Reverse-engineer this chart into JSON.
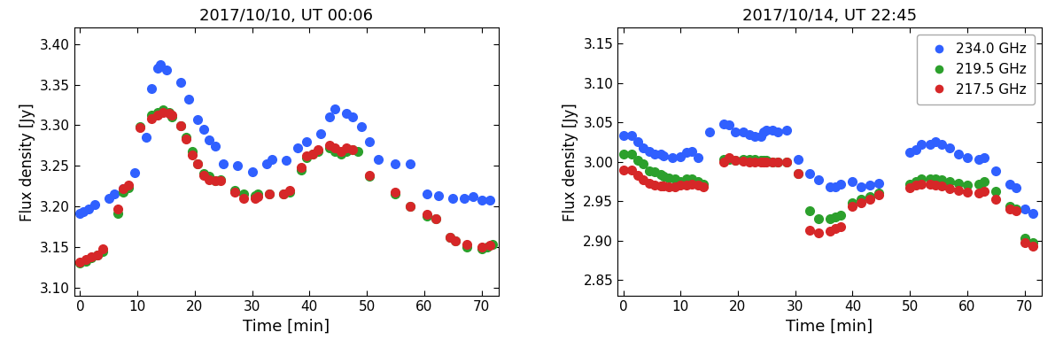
{
  "panel1": {
    "title": "2017/10/10, UT 00:06",
    "ylabel": "Flux density [Jy]",
    "xlabel": "Time [min]",
    "xlim": [
      -1,
      73
    ],
    "ylim": [
      3.09,
      3.42
    ],
    "yticks": [
      3.1,
      3.15,
      3.2,
      3.25,
      3.3,
      3.35,
      3.4
    ],
    "xticks": [
      0,
      10,
      20,
      30,
      40,
      50,
      60,
      70
    ],
    "blue": {
      "x": [
        0.0,
        0.5,
        1.5,
        2.5,
        5.0,
        6.0,
        7.5,
        9.5,
        11.5,
        12.5,
        13.5,
        14.0,
        15.0,
        17.5,
        19.0,
        20.5,
        21.5,
        22.5,
        23.5,
        25.0,
        27.5,
        30.0,
        32.5,
        33.5,
        36.0,
        38.0,
        39.5,
        42.0,
        43.5,
        44.5,
        46.5,
        47.5,
        49.0,
        50.5,
        52.0,
        55.0,
        57.5,
        60.5,
        62.5,
        65.0,
        67.0,
        68.5,
        70.0,
        71.5
      ],
      "y": [
        3.192,
        3.194,
        3.197,
        3.202,
        3.21,
        3.215,
        3.222,
        3.242,
        3.285,
        3.345,
        3.37,
        3.375,
        3.368,
        3.353,
        3.332,
        3.307,
        3.295,
        3.282,
        3.274,
        3.253,
        3.25,
        3.243,
        3.252,
        3.258,
        3.257,
        3.272,
        3.28,
        3.29,
        3.31,
        3.32,
        3.315,
        3.31,
        3.298,
        3.28,
        3.258,
        3.252,
        3.252,
        3.215,
        3.213,
        3.21,
        3.21,
        3.212,
        3.208,
        3.208
      ]
    },
    "green": {
      "x": [
        0.0,
        1.0,
        2.0,
        3.0,
        4.0,
        6.5,
        7.5,
        8.5,
        10.5,
        12.5,
        13.5,
        14.5,
        15.5,
        16.0,
        17.5,
        18.5,
        19.5,
        20.5,
        21.5,
        22.5,
        23.5,
        24.5,
        27.0,
        28.5,
        30.5,
        31.0,
        33.0,
        35.5,
        36.5,
        38.5,
        39.5,
        40.5,
        41.5,
        43.5,
        44.5,
        45.5,
        46.5,
        47.5,
        48.5,
        50.5,
        55.0,
        57.5,
        60.5,
        62.0,
        64.5,
        65.5,
        67.5,
        70.0,
        71.0,
        72.0
      ],
      "y": [
        3.13,
        3.133,
        3.137,
        3.14,
        3.145,
        3.192,
        3.218,
        3.223,
        3.298,
        3.312,
        3.316,
        3.319,
        3.316,
        3.31,
        3.299,
        3.285,
        3.268,
        3.253,
        3.24,
        3.237,
        3.232,
        3.233,
        3.22,
        3.215,
        3.213,
        3.215,
        3.215,
        3.215,
        3.218,
        3.245,
        3.26,
        3.265,
        3.268,
        3.272,
        3.268,
        3.265,
        3.268,
        3.27,
        3.268,
        3.237,
        3.215,
        3.2,
        3.188,
        3.185,
        3.162,
        3.158,
        3.15,
        3.148,
        3.15,
        3.153
      ]
    },
    "red": {
      "x": [
        0.0,
        1.0,
        2.0,
        3.0,
        4.0,
        6.5,
        7.5,
        8.5,
        10.5,
        12.5,
        13.5,
        14.5,
        15.5,
        16.0,
        17.5,
        18.5,
        19.5,
        20.5,
        21.5,
        22.5,
        23.5,
        24.5,
        27.0,
        28.5,
        30.5,
        31.0,
        33.0,
        35.5,
        36.5,
        38.5,
        39.5,
        40.5,
        41.5,
        43.5,
        44.5,
        45.5,
        46.5,
        47.5,
        50.5,
        55.0,
        57.5,
        60.5,
        62.0,
        64.5,
        65.5,
        67.5,
        70.0,
        71.5
      ],
      "y": [
        3.132,
        3.135,
        3.138,
        3.14,
        3.148,
        3.197,
        3.222,
        3.226,
        3.297,
        3.308,
        3.312,
        3.316,
        3.315,
        3.312,
        3.299,
        3.283,
        3.263,
        3.252,
        3.238,
        3.233,
        3.232,
        3.232,
        3.218,
        3.21,
        3.21,
        3.212,
        3.215,
        3.215,
        3.22,
        3.248,
        3.262,
        3.265,
        3.27,
        3.275,
        3.272,
        3.268,
        3.272,
        3.27,
        3.238,
        3.218,
        3.2,
        3.19,
        3.185,
        3.162,
        3.158,
        3.153,
        3.15,
        3.152
      ]
    }
  },
  "panel2": {
    "title": "2017/10/14, UT 22:45",
    "ylabel": "Flux density [Jy]",
    "xlabel": "Time [min]",
    "xlim": [
      -1,
      73
    ],
    "ylim": [
      2.83,
      3.17
    ],
    "yticks": [
      2.85,
      2.9,
      2.95,
      3.0,
      3.05,
      3.1,
      3.15
    ],
    "xticks": [
      0,
      10,
      20,
      30,
      40,
      50,
      60,
      70
    ],
    "blue": {
      "x": [
        0.0,
        1.5,
        2.5,
        3.5,
        4.5,
        5.5,
        6.5,
        7.0,
        8.5,
        10.0,
        11.0,
        12.0,
        13.0,
        15.0,
        17.5,
        18.5,
        19.5,
        21.0,
        22.0,
        23.0,
        24.0,
        24.5,
        25.0,
        26.0,
        27.0,
        28.5,
        30.5,
        32.5,
        34.0,
        36.0,
        37.0,
        38.0,
        40.0,
        41.5,
        43.0,
        44.5,
        50.0,
        51.0,
        52.0,
        53.5,
        54.5,
        55.5,
        57.0,
        58.5,
        60.0,
        62.0,
        63.0,
        65.0,
        67.5,
        68.5,
        70.0,
        71.5
      ],
      "y": [
        3.033,
        3.033,
        3.025,
        3.018,
        3.013,
        3.01,
        3.01,
        3.008,
        3.005,
        3.007,
        3.012,
        3.013,
        3.005,
        3.038,
        3.048,
        3.047,
        3.038,
        3.038,
        3.035,
        3.032,
        3.032,
        3.038,
        3.04,
        3.04,
        3.038,
        3.04,
        3.003,
        2.985,
        2.977,
        2.968,
        2.968,
        2.972,
        2.975,
        2.968,
        2.97,
        2.973,
        3.012,
        3.015,
        3.022,
        3.022,
        3.025,
        3.022,
        3.018,
        3.01,
        3.005,
        3.003,
        3.005,
        2.988,
        2.972,
        2.967,
        2.94,
        2.935
      ]
    },
    "green": {
      "x": [
        0.0,
        1.5,
        2.5,
        3.5,
        4.5,
        5.5,
        6.5,
        7.0,
        8.0,
        9.0,
        10.0,
        11.0,
        12.0,
        13.0,
        14.0,
        17.5,
        18.5,
        19.5,
        21.0,
        22.0,
        23.0,
        24.0,
        24.5,
        25.0,
        26.0,
        27.0,
        28.5,
        30.5,
        32.5,
        34.0,
        36.0,
        37.0,
        38.0,
        40.0,
        41.5,
        43.0,
        44.5,
        50.0,
        51.0,
        52.0,
        53.5,
        54.5,
        55.5,
        57.0,
        58.5,
        60.0,
        62.0,
        63.0,
        65.0,
        67.5,
        68.5,
        70.0,
        71.5
      ],
      "y": [
        3.01,
        3.01,
        3.002,
        2.998,
        2.989,
        2.987,
        2.984,
        2.982,
        2.98,
        2.978,
        2.975,
        2.978,
        2.978,
        2.975,
        2.972,
        3.003,
        3.003,
        3.002,
        3.003,
        3.003,
        3.003,
        3.002,
        3.002,
        3.002,
        3.0,
        3.0,
        3.0,
        2.985,
        2.938,
        2.928,
        2.928,
        2.93,
        2.932,
        2.948,
        2.952,
        2.956,
        2.96,
        2.972,
        2.975,
        2.978,
        2.978,
        2.978,
        2.977,
        2.975,
        2.973,
        2.97,
        2.972,
        2.975,
        2.963,
        2.943,
        2.94,
        2.903,
        2.898
      ]
    },
    "red": {
      "x": [
        0.0,
        1.5,
        2.5,
        3.5,
        4.5,
        5.5,
        6.5,
        7.0,
        8.0,
        9.0,
        10.0,
        11.0,
        12.0,
        13.0,
        14.0,
        17.5,
        18.5,
        19.5,
        21.0,
        22.0,
        23.0,
        24.0,
        24.5,
        25.0,
        26.0,
        27.0,
        28.5,
        30.5,
        32.5,
        34.0,
        36.0,
        37.0,
        38.0,
        40.0,
        41.5,
        43.0,
        44.5,
        50.0,
        51.0,
        52.0,
        53.5,
        54.5,
        55.5,
        57.0,
        58.5,
        60.0,
        62.0,
        63.0,
        65.0,
        67.5,
        68.5,
        70.0,
        71.5
      ],
      "y": [
        2.99,
        2.99,
        2.983,
        2.977,
        2.973,
        2.971,
        2.969,
        2.969,
        2.968,
        2.968,
        2.97,
        2.97,
        2.972,
        2.97,
        2.968,
        3.0,
        3.005,
        3.002,
        3.001,
        3.0,
        3.0,
        3.0,
        3.0,
        3.0,
        3.0,
        3.0,
        3.0,
        2.985,
        2.913,
        2.91,
        2.912,
        2.915,
        2.918,
        2.943,
        2.948,
        2.953,
        2.958,
        2.967,
        2.97,
        2.972,
        2.972,
        2.97,
        2.969,
        2.966,
        2.964,
        2.962,
        2.96,
        2.963,
        2.952,
        2.94,
        2.938,
        2.898,
        2.893
      ]
    }
  },
  "legend_labels": [
    "234.0 GHz",
    "219.5 GHz",
    "217.5 GHz"
  ],
  "colors": {
    "blue": "#3060FF",
    "green": "#2ca02c",
    "red": "#d62728"
  },
  "markersize": 7,
  "figsize": [
    12.0,
    3.93
  ],
  "dpi": 100
}
